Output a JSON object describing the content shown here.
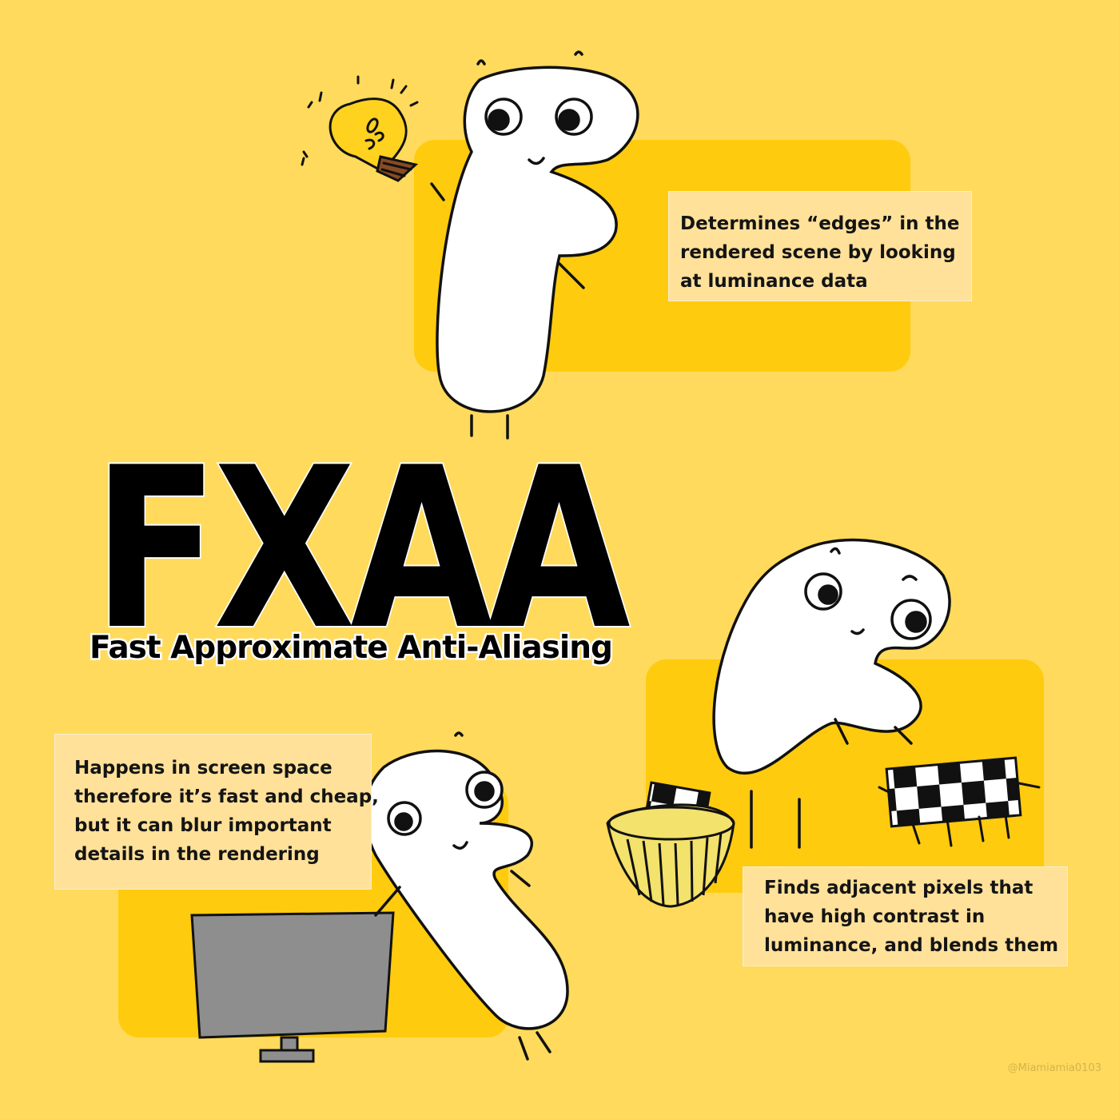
{
  "title": "FXAA",
  "subtitle": "Fast Approximate Anti-Aliasing",
  "notes": {
    "edges": [
      "Determines “edges” in the",
      "rendered scene by looking",
      "at luminance data"
    ],
    "screen_space": [
      "Happens in screen space",
      "therefore it’s fast and cheap,",
      "but it can blur important",
      "details in the rendering"
    ],
    "blend": [
      "Finds adjacent pixels that",
      "have high contrast in",
      "luminance, and blends them"
    ]
  },
  "credit": "@Miamiamia0103",
  "colors": {
    "background": "#FFDA5C",
    "panel": "#FFCB0E",
    "note": "#FFE19A",
    "text": "#000000"
  },
  "illustrations": [
    "lightbulb-icon",
    "f-character",
    "monitor",
    "basket",
    "pixel-block"
  ]
}
